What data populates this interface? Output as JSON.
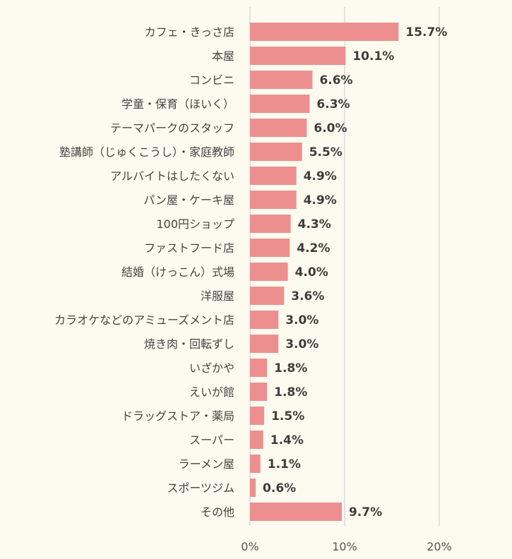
{
  "chart_data": {
    "type": "bar",
    "orientation": "horizontal",
    "categories": [
      "カフェ・きっさ店",
      "本屋",
      "コンビニ",
      "学童・保育（ほいく）",
      "テーマパークのスタッフ",
      "塾講師（じゅくこうし）・家庭教師",
      "アルバイトはしたくない",
      "パン屋・ケーキ屋",
      "100円ショップ",
      "ファストフード店",
      "結婚（けっこん）式場",
      "洋服屋",
      "カラオケなどのアミューズメント店",
      "焼き肉・回転ずし",
      "いざかや",
      "えいが館",
      "ドラッグストア・薬局",
      "スーパー",
      "ラーメン屋",
      "スポーツジム",
      "その他"
    ],
    "values": [
      15.7,
      10.1,
      6.6,
      6.3,
      6.0,
      5.5,
      4.9,
      4.9,
      4.3,
      4.2,
      4.0,
      3.6,
      3.0,
      3.0,
      1.8,
      1.8,
      1.5,
      1.4,
      1.1,
      0.6,
      9.7
    ],
    "value_labels": [
      "15.7%",
      "10.1%",
      "6.6%",
      "6.3%",
      "6.0%",
      "5.5%",
      "4.9%",
      "4.9%",
      "4.3%",
      "4.2%",
      "4.0%",
      "3.6%",
      "3.0%",
      "3.0%",
      "1.8%",
      "1.8%",
      "1.5%",
      "1.4%",
      "1.1%",
      "0.6%",
      "9.7%"
    ],
    "xlim": [
      0,
      20
    ],
    "x_ticks": [
      0,
      10,
      20
    ],
    "x_tick_labels": [
      "0%",
      "10%",
      "20%"
    ],
    "grid": "vertical",
    "legend": "none",
    "title": "",
    "xlabel": "",
    "ylabel": ""
  },
  "colors": {
    "bar": "#ed8f8f",
    "background": "#fdfbef",
    "grid": "#d9d9d9",
    "value_text": "#3d3d3d",
    "label_text": "#444444"
  }
}
